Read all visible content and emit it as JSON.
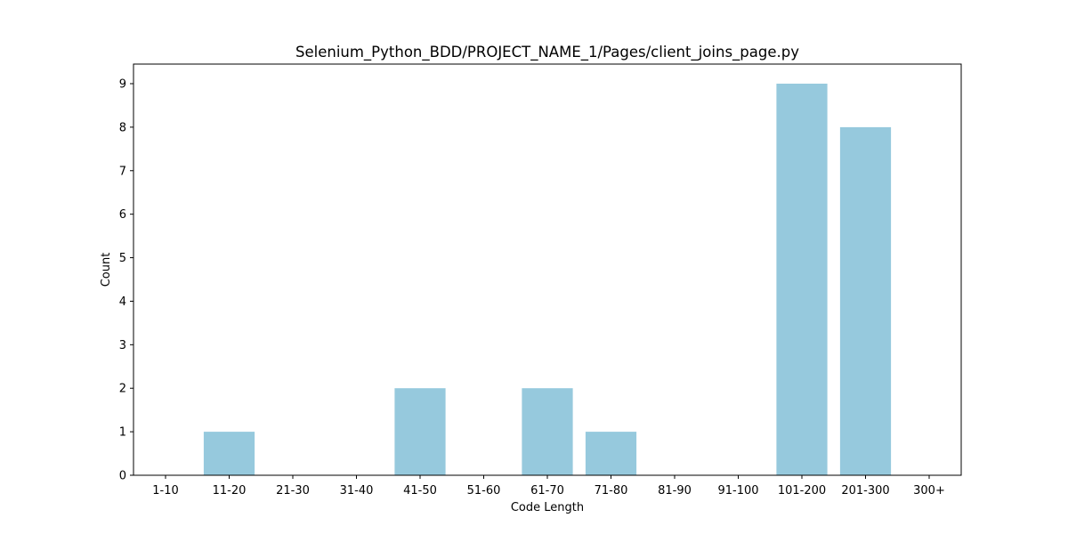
{
  "chart_data": {
    "type": "bar",
    "title": "Selenium_Python_BDD/PROJECT_NAME_1/Pages/client_joins_page.py",
    "xlabel": "Code Length",
    "ylabel": "Count",
    "categories": [
      "1-10",
      "11-20",
      "21-30",
      "31-40",
      "41-50",
      "51-60",
      "61-70",
      "71-80",
      "81-90",
      "91-100",
      "101-200",
      "201-300",
      "300+"
    ],
    "values": [
      0,
      1,
      0,
      0,
      2,
      0,
      2,
      1,
      0,
      0,
      9,
      8,
      0
    ],
    "ylim": [
      0,
      9.45
    ],
    "yticks": [
      0,
      1,
      2,
      3,
      4,
      5,
      6,
      7,
      8,
      9
    ],
    "grid": false,
    "bar_color": "#96c9dd",
    "axis_color": "#000000"
  }
}
